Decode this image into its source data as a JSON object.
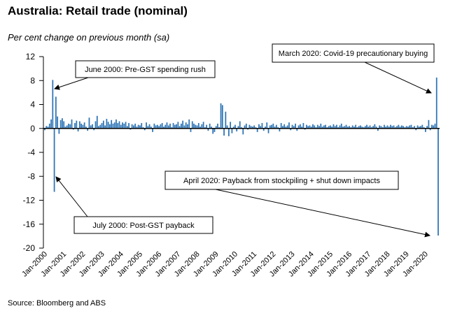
{
  "title": "Australia: Retail trade (nominal)",
  "subtitle": "Per cent change on previous month (sa)",
  "source": "Source: Bloomberg and ABS",
  "colors": {
    "bar": "#2e75b6",
    "axis": "#000000",
    "annotation_border": "#000000"
  },
  "chart_data": {
    "type": "bar",
    "title": "Australia: Retail trade (nominal)",
    "ylabel": "Per cent change on previous month (sa)",
    "xlabel": "",
    "ylim": [
      -20,
      12
    ],
    "yticks": [
      12,
      8,
      4,
      0,
      -4,
      -8,
      -12,
      -16,
      -20
    ],
    "grid": false,
    "x_start": "Jan-2000",
    "x_end": "Apr-2020",
    "x_ticks": [
      "Jan-2000",
      "Jan-2001",
      "Jan-2002",
      "Jan-2003",
      "Jan-2004",
      "Jan-2005",
      "Jan-2006",
      "Jan-2007",
      "Jan-2008",
      "Jan-2009",
      "Jan-2010",
      "Jan-2011",
      "Jan-2012",
      "Jan-2013",
      "Jan-2014",
      "Jan-2015",
      "Jan-2016",
      "Jan-2017",
      "Jan-2018",
      "Jan-2019",
      "Jan-2020"
    ],
    "series": [
      {
        "values": [
          -0.3,
          0.4,
          0.3,
          0.8,
          1.5,
          8.1,
          -10.6,
          5.3,
          2.0,
          -0.9,
          1.4,
          1.7,
          1.2,
          0.3,
          0.5,
          0.8,
          0.7,
          1.5,
          -0.2,
          0.9,
          1.3,
          -0.5,
          1.2,
          0.8,
          0.6,
          1.0,
          0.3,
          -0.4,
          1.8,
          0.5,
          0.7,
          -0.3,
          1.2,
          2.1,
          0.4,
          0.6,
          0.9,
          1.3,
          0.5,
          1.6,
          1.1,
          0.7,
          1.4,
          0.8,
          1.0,
          1.5,
          0.9,
          1.2,
          0.6,
          1.0,
          0.8,
          1.1,
          0.4,
          0.9,
          -0.2,
          0.7,
          0.5,
          0.8,
          0.3,
          0.6,
          0.5,
          0.9,
          0.2,
          -0.3,
          1.0,
          0.4,
          0.7,
          0.3,
          -0.6,
          0.8,
          0.5,
          0.6,
          0.4,
          0.7,
          0.9,
          0.3,
          0.6,
          1.0,
          0.5,
          0.8,
          0.2,
          0.9,
          0.6,
          0.7,
          1.1,
          0.4,
          0.8,
          1.3,
          0.5,
          1.0,
          0.7,
          1.5,
          -0.6,
          1.2,
          0.8,
          0.6,
          0.5,
          0.9,
          0.3,
          0.7,
          1.1,
          0.2,
          0.6,
          -0.4,
          0.8,
          0.3,
          -0.9,
          -0.6,
          0.4,
          0.8,
          0.2,
          4.2,
          3.9,
          -1.2,
          2.8,
          0.5,
          -1.3,
          1.1,
          -0.8,
          0.3,
          0.6,
          -0.5,
          0.4,
          1.2,
          0.2,
          -1.0,
          0.5,
          0.8,
          -0.2,
          0.6,
          0.4,
          0.3,
          0.5,
          0.2,
          -0.6,
          0.7,
          0.4,
          0.9,
          -0.4,
          0.3,
          1.0,
          -0.8,
          0.5,
          0.6,
          0.8,
          0.3,
          0.6,
          0.2,
          -0.5,
          0.9,
          0.4,
          0.7,
          0.3,
          0.5,
          1.0,
          -0.3,
          0.6,
          0.4,
          0.8,
          -0.4,
          0.5,
          0.7,
          0.3,
          0.9,
          -0.2,
          0.6,
          0.4,
          0.5,
          0.3,
          0.7,
          0.5,
          0.2,
          0.6,
          0.4,
          0.8,
          0.3,
          0.5,
          0.6,
          0.2,
          0.4,
          0.5,
          0.3,
          0.7,
          0.4,
          0.6,
          0.2,
          0.5,
          0.8,
          0.3,
          0.4,
          0.6,
          0.3,
          0.4,
          0.2,
          0.5,
          0.3,
          0.6,
          0.2,
          0.4,
          0.5,
          0.3,
          0.2,
          0.4,
          0.6,
          0.3,
          0.5,
          0.2,
          0.4,
          0.7,
          0.3,
          -0.4,
          0.5,
          0.4,
          0.2,
          0.6,
          0.3,
          0.5,
          0.3,
          0.6,
          0.4,
          0.5,
          0.2,
          0.4,
          0.6,
          0.3,
          0.5,
          0.4,
          0.2,
          0.4,
          0.3,
          0.5,
          0.6,
          0.2,
          0.4,
          -0.3,
          0.5,
          0.3,
          0.4,
          0.6,
          0.2,
          -0.6,
          0.4,
          1.4,
          -0.3,
          0.6,
          0.5,
          0.8,
          8.5,
          -17.9
        ]
      }
    ],
    "annotations": [
      {
        "text": "June 2000: Pre-GST spending rush",
        "target_index": 5
      },
      {
        "text": "July 2000: Post-GST payback",
        "target_index": 6
      },
      {
        "text": "March 2020: Covid-19 precautionary buying",
        "target_index": 242
      },
      {
        "text": "April 2020: Payback from stockpiling + shut down impacts",
        "target_index": 243
      }
    ]
  }
}
